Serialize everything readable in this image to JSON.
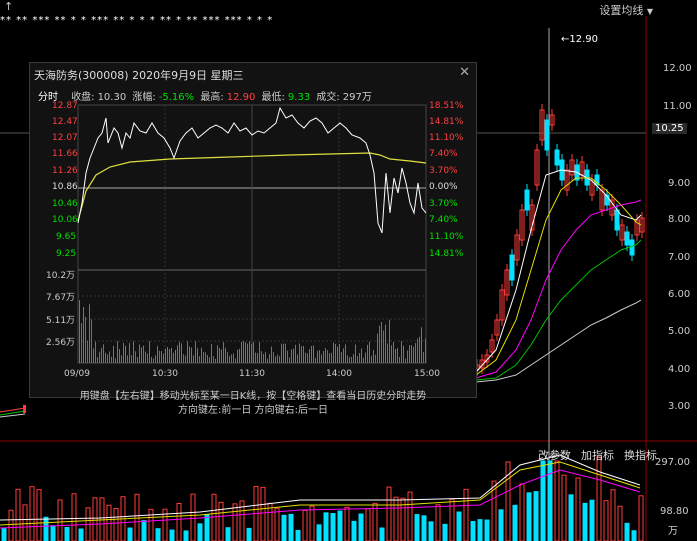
{
  "top": {
    "arrow_label": "↑",
    "settings_label": "设置均线",
    "stars": "** ** *** ** * * *** ** * * * ** * ** *** *** * * *"
  },
  "main_axis": {
    "price_ticks": [
      "12.00",
      "11.00",
      "10.25",
      "9.00",
      "8.00",
      "7.00",
      "6.00",
      "5.00",
      "4.00",
      "3.00"
    ],
    "current_price": "10.25",
    "high_marker": "12.90"
  },
  "buttons": {
    "change_params": "改参数",
    "add_indicator": "加指标",
    "change_indicator": "换指标"
  },
  "volume_axis": {
    "ticks": [
      "297.00",
      "98.80",
      "万"
    ]
  },
  "popup": {
    "title": "天海防务(300008)  2020年9月9日  星期三",
    "close_icon": "✕",
    "info": {
      "fenshi": "分时",
      "close_label": "收盘:",
      "close_value": "10.30",
      "change_label": "涨幅:",
      "change_value": "-5.16%",
      "high_label": "最高:",
      "high_value": "12.90",
      "low_label": "最低:",
      "low_value": "9.33",
      "volume_label": "成交:",
      "volume_value": "297万"
    },
    "left_prices": [
      "12.87",
      "12.47",
      "12.07",
      "11.66",
      "11.26",
      "10.86",
      "10.46",
      "10.06",
      "9.65",
      "9.25"
    ],
    "right_pcts": [
      "18.51%",
      "14.81%",
      "11.10%",
      "7.40%",
      "3.70%",
      "0.00%",
      "3.70%",
      "7.40%",
      "11.10%",
      "14.81%"
    ],
    "vol_labels": [
      "10.2万",
      "7.67万",
      "5.11万",
      "2.56万"
    ],
    "time_labels": [
      "09/09",
      "10:30",
      "11:30",
      "14:00",
      "15:00"
    ],
    "hint_line1": "用键盘【左右键】移动光标至某一日K线，按【空格键】查看当日历史分时走势",
    "hint_line2": "方向键左:前一日   方向键右:后一日"
  },
  "colors": {
    "up": "#ff3a3a",
    "down": "#00e0ff",
    "price_line": "#ffffff",
    "avg_line": "#e0e040",
    "ma5": "#ffffff",
    "ma10": "#e0e000",
    "ma20": "#ff00ff",
    "ma30": "#00c000",
    "ma60": "#cccccc"
  }
}
